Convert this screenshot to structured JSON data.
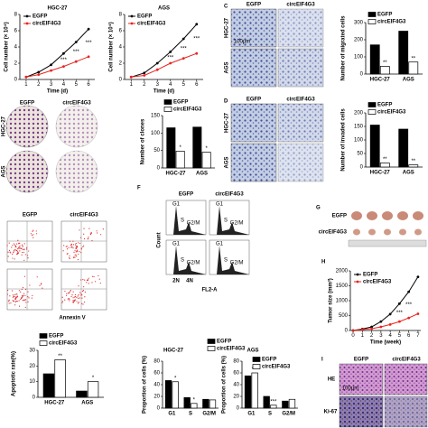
{
  "panel_letters": [
    "C",
    "D",
    "F",
    "G",
    "H",
    "I"
  ],
  "panels": {
    "B": {
      "cols": [
        "EGFP",
        "circEIF4G3"
      ],
      "rows": [
        "HGC-27",
        "AGS"
      ]
    },
    "C": {
      "cols": [
        "EGFP",
        "circEIF4G3"
      ],
      "rows": [
        "HGC-27",
        "AGS"
      ],
      "scale": "100µm"
    },
    "D": {
      "cols": [
        "EGFP",
        "circEIF4G3"
      ],
      "rows": [
        "HGC-27",
        "AGS"
      ]
    },
    "E": {
      "cols": [
        "EGFP",
        "circEIF4G3"
      ],
      "axis": "Annexin V"
    },
    "F": {
      "cols": [
        "EGFP",
        "circEIF4G3"
      ],
      "y_axis": "Count",
      "x_axis": "FL2-A",
      "phases": [
        "G1",
        "S",
        "G2/M"
      ],
      "ploidy": [
        "2N",
        "4N"
      ]
    },
    "G": {
      "rows": [
        "EGFP",
        "circEIF4G3"
      ]
    },
    "I": {
      "cols": [
        "EGFP",
        "circEIF4G3"
      ],
      "rows": [
        "HE",
        "Ki-67"
      ],
      "scale": "100µm"
    }
  },
  "chart_data": [
    {
      "type": "line",
      "title": "HGC-27",
      "x_label": "Time (d)",
      "y_label": "Cell number (× 10⁴)",
      "x": [
        1,
        2,
        3,
        4,
        5,
        6
      ],
      "xlim": [
        0.5,
        6.5
      ],
      "xticks": [
        1,
        2,
        3,
        4,
        5,
        6
      ],
      "ylim": [
        0,
        8
      ],
      "yticks": [
        0,
        2,
        4,
        6,
        8
      ],
      "series": [
        {
          "name": "EGFP",
          "color": "#000000",
          "values": [
            0.3,
            0.9,
            1.8,
            3.2,
            4.6,
            6.2
          ]
        },
        {
          "name": "circEIF4G3",
          "color": "#e8231f",
          "values": [
            0.3,
            0.6,
            1.1,
            1.6,
            2.2,
            2.8
          ]
        }
      ],
      "annotations": [
        {
          "at": 4,
          "text": "***"
        },
        {
          "at": 5,
          "text": "***"
        },
        {
          "at": 6,
          "text": "***"
        }
      ]
    },
    {
      "type": "line",
      "title": "AGS",
      "x_label": "Time (d)",
      "y_label": "Cell number (× 10⁴)",
      "x": [
        1,
        2,
        3,
        4,
        5,
        6
      ],
      "xlim": [
        0.5,
        6.5
      ],
      "xticks": [
        1,
        2,
        3,
        4,
        5,
        6
      ],
      "ylim": [
        0,
        8
      ],
      "yticks": [
        0,
        2,
        4,
        6,
        8
      ],
      "series": [
        {
          "name": "EGFP",
          "color": "#000000",
          "values": [
            0.3,
            0.8,
            2.0,
            3.4,
            5.0,
            6.8
          ]
        },
        {
          "name": "circEIF4G3",
          "color": "#e8231f",
          "values": [
            0.3,
            0.5,
            1.2,
            2.0,
            2.6,
            3.2
          ]
        }
      ],
      "annotations": [
        {
          "at": 4,
          "text": "***"
        },
        {
          "at": 5,
          "text": "***"
        },
        {
          "at": 6,
          "text": "***"
        }
      ]
    },
    {
      "type": "bar",
      "y_label": "Number of clones",
      "categories": [
        "HGC-27",
        "AGS"
      ],
      "ylim": [
        0,
        150
      ],
      "yticks": [
        0,
        50,
        100,
        150
      ],
      "series": [
        {
          "name": "EGFP",
          "color": "#000000",
          "values": [
            115,
            117
          ]
        },
        {
          "name": "circEIF4G3",
          "color": "#ffffff",
          "values": [
            48,
            45
          ]
        }
      ],
      "annotations": [
        {
          "at": "HGC-27",
          "text": "*"
        },
        {
          "at": "AGS",
          "text": "*"
        }
      ]
    },
    {
      "type": "bar",
      "y_label": "Number of migrated cells",
      "categories": [
        "HGC-27",
        "AGS"
      ],
      "ylim": [
        0,
        300
      ],
      "yticks": [
        0,
        100,
        200,
        300
      ],
      "series": [
        {
          "name": "EGFP",
          "color": "#000000",
          "values": [
            170,
            250
          ]
        },
        {
          "name": "circEIF4G3",
          "color": "#ffffff",
          "values": [
            45,
            70
          ]
        }
      ],
      "annotations": [
        {
          "at": "HGC-27",
          "text": "**"
        },
        {
          "at": "AGS",
          "text": "**"
        }
      ]
    },
    {
      "type": "bar",
      "y_label": "Number of invaded cells",
      "categories": [
        "HGC-27",
        "AGS"
      ],
      "ylim": [
        0,
        200
      ],
      "yticks": [
        0,
        50,
        100,
        150,
        200
      ],
      "series": [
        {
          "name": "EGFP",
          "color": "#000000",
          "values": [
            155,
            140
          ]
        },
        {
          "name": "circEIF4G3",
          "color": "#ffffff",
          "values": [
            15,
            8
          ]
        }
      ],
      "annotations": [
        {
          "at": "HGC-27",
          "text": "**"
        },
        {
          "at": "AGS",
          "text": "**"
        }
      ]
    },
    {
      "type": "bar",
      "y_label": "Apoptotic rate(%)",
      "categories": [
        "HGC-27",
        "AGS"
      ],
      "ylim": [
        0,
        30
      ],
      "yticks": [
        0,
        10,
        20,
        30
      ],
      "series": [
        {
          "name": "EGFP",
          "color": "#000000",
          "values": [
            15,
            4
          ]
        },
        {
          "name": "circEIF4G3",
          "color": "#ffffff",
          "values": [
            24,
            10
          ]
        }
      ],
      "annotations": [
        {
          "at": "HGC-27",
          "text": "**"
        },
        {
          "at": "AGS",
          "text": "*"
        }
      ]
    },
    {
      "type": "bar",
      "title": "HGC-27",
      "y_label": "Proportion of cells (%)",
      "categories": [
        "G1",
        "S",
        "G2/M"
      ],
      "ylim": [
        0,
        80
      ],
      "yticks": [
        0,
        20,
        40,
        60,
        80
      ],
      "series": [
        {
          "name": "EGFP",
          "color": "#000000",
          "values": [
            47,
            18,
            15
          ]
        },
        {
          "name": "circEIF4G3",
          "color": "#ffffff",
          "values": [
            45,
            8,
            14
          ]
        }
      ],
      "annotations": [
        {
          "at": "G1",
          "text": "*"
        },
        {
          "at": "S",
          "text": "*"
        }
      ]
    },
    {
      "type": "bar",
      "title": "AGS",
      "y_label": "Proportion of cells (%)",
      "categories": [
        "G1",
        "S",
        "G2/M"
      ],
      "ylim": [
        0,
        80
      ],
      "yticks": [
        0,
        20,
        40,
        60,
        80
      ],
      "series": [
        {
          "name": "EGFP",
          "color": "#000000",
          "values": [
            55,
            20,
            12
          ]
        },
        {
          "name": "circEIF4G3",
          "color": "#ffffff",
          "values": [
            60,
            5,
            15
          ]
        }
      ],
      "annotations": [
        {
          "at": "G1",
          "text": "***"
        },
        {
          "at": "S",
          "text": "***"
        }
      ]
    },
    {
      "type": "line",
      "x_label": "Time (week)",
      "y_label": "Tumor size (mm³)",
      "x": [
        0,
        1,
        2,
        3,
        4,
        5,
        6,
        7
      ],
      "xlim": [
        -0.3,
        7.3
      ],
      "xticks": [
        0,
        1,
        2,
        3,
        4,
        5,
        6,
        7
      ],
      "ylim": [
        0,
        2000
      ],
      "yticks": [
        0,
        500,
        1000,
        1500,
        2000
      ],
      "series": [
        {
          "name": "EGFP",
          "color": "#000000",
          "values": [
            0,
            50,
            120,
            300,
            550,
            900,
            1300,
            1800
          ]
        },
        {
          "name": "circEIF4G3",
          "color": "#e8231f",
          "values": [
            0,
            30,
            60,
            120,
            200,
            300,
            420,
            560
          ]
        }
      ],
      "annotations": [
        {
          "at": 5,
          "text": "***"
        },
        {
          "at": 6,
          "text": "***"
        }
      ]
    }
  ]
}
